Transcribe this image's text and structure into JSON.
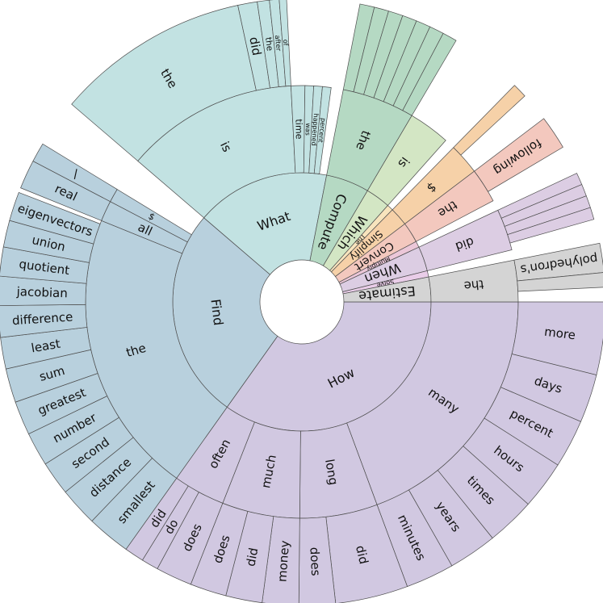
{
  "chart_data": {
    "type": "sunburst",
    "title": "",
    "root": [
      {
        "label": "How",
        "value": 270,
        "color": "#d1c8e1",
        "children": [
          {
            "label": "many",
            "value": 150,
            "children": [
              {
                "label": "more",
                "value": 30
              },
              {
                "label": "days",
                "value": 20
              },
              {
                "label": "percent",
                "value": 20
              },
              {
                "label": "hours",
                "value": 20
              },
              {
                "label": "times",
                "value": 20
              },
              {
                "label": "years",
                "value": 20
              },
              {
                "label": "minutes",
                "value": 20
              }
            ]
          },
          {
            "label": "long",
            "value": 45,
            "children": [
              {
                "label": "did",
                "value": 30
              },
              {
                "label": "does",
                "value": 15
              }
            ]
          },
          {
            "label": "much",
            "value": 45,
            "children": [
              {
                "label": "money",
                "value": 15
              },
              {
                "label": "did",
                "value": 15
              },
              {
                "label": "does",
                "value": 15
              }
            ]
          },
          {
            "label": "often",
            "value": 30,
            "children": [
              {
                "label": "does",
                "value": 15
              },
              {
                "label": "do",
                "value": 7
              },
              {
                "label": "did",
                "value": 8
              }
            ]
          }
        ]
      },
      {
        "label": "Find",
        "value": 205,
        "color": "#b8d0dd",
        "children": [
          {
            "label": "the",
            "value": 165,
            "children": [
              {
                "label": "smallest",
                "value": 18
              },
              {
                "label": "distance",
                "value": 16
              },
              {
                "label": "second",
                "value": 14
              },
              {
                "label": "number",
                "value": 14
              },
              {
                "label": "greatest",
                "value": 14
              },
              {
                "label": "sum",
                "value": 14
              },
              {
                "label": "least",
                "value": 13
              },
              {
                "label": "difference",
                "value": 13
              },
              {
                "label": "jacobian",
                "value": 12
              },
              {
                "label": "quotient",
                "value": 12
              },
              {
                "label": "union",
                "value": 11
              },
              {
                "label": "eigenvectors",
                "value": 12
              }
            ]
          },
          {
            "label": "all",
            "value": 12,
            "children": [
              {
                "label": "real",
                "value": 12
              }
            ]
          },
          {
            "label": "$",
            "value": 8,
            "children": [
              {
                "label": "\\",
                "value": 8
              }
            ]
          }
        ]
      },
      {
        "label": "What",
        "value": 130,
        "color": "#c2e2e2",
        "children": [
          {
            "label": "is",
            "value": 100,
            "children": [
              {
                "label": "the",
                "value": 80
              },
              {
                "label": "did",
                "value": 8
              },
              {
                "label": "the",
                "value": 5
              },
              {
                "label": "after",
                "value": 4
              },
              {
                "label": "of",
                "value": 3
              }
            ]
          },
          {
            "label": "time",
            "value": 8,
            "children": []
          },
          {
            "label": "was",
            "value": 5,
            "children": []
          },
          {
            "label": "happened",
            "value": 5,
            "children": []
          },
          {
            "label": "percent",
            "value": 5,
            "children": []
          }
        ]
      },
      {
        "label": "Compute",
        "value": 42,
        "color": "#b5d9c3",
        "children": [
          {
            "label": "the",
            "value": 42,
            "children": [
              {
                "label": "",
                "value": 6
              },
              {
                "label": "",
                "value": 6
              },
              {
                "label": "",
                "value": 6
              },
              {
                "label": "",
                "value": 6
              },
              {
                "label": "",
                "value": 6
              },
              {
                "label": "",
                "value": 6
              },
              {
                "label": "",
                "value": 6
              }
            ]
          }
        ]
      },
      {
        "label": "Which",
        "value": 24,
        "color": "#d3e6c4",
        "children": [
          {
            "label": "is",
            "value": 24,
            "children": []
          }
        ]
      },
      {
        "label": "The",
        "value": 6,
        "color": "#f8e4bd",
        "children": []
      },
      {
        "label": "Simplify",
        "value": 18,
        "color": "#f6d1a8",
        "children": [
          {
            "label": "$",
            "value": 18,
            "children": [
              {
                "label": "",
                "value": 6
              }
            ]
          }
        ]
      },
      {
        "label": "Convert",
        "value": 20,
        "color": "#f3c8be",
        "children": [
          {
            "label": "the",
            "value": 20,
            "children": [
              {
                "label": "following",
                "value": 14
              }
            ]
          }
        ]
      },
      {
        "label": "Multiply",
        "value": 6,
        "color": "#ebc7d8",
        "children": []
      },
      {
        "label": "When",
        "value": 24,
        "color": "#dccde3",
        "children": [
          {
            "label": "did",
            "value": 24,
            "children": [
              {
                "label": "",
                "value": 5
              },
              {
                "label": "",
                "value": 5
              },
              {
                "label": "",
                "value": 5
              },
              {
                "label": "",
                "value": 5
              }
            ]
          }
        ]
      },
      {
        "label": "Solve",
        "value": 6,
        "color": "#e9cde8",
        "children": []
      },
      {
        "label": "Estimate",
        "value": 24,
        "color": "#d4d4d4",
        "children": [
          {
            "label": "the",
            "value": 24,
            "children": [
              {
                "label": "polyhedron's",
                "value": 12
              },
              {
                "label": "",
                "value": 6
              }
            ]
          }
        ]
      }
    ]
  }
}
